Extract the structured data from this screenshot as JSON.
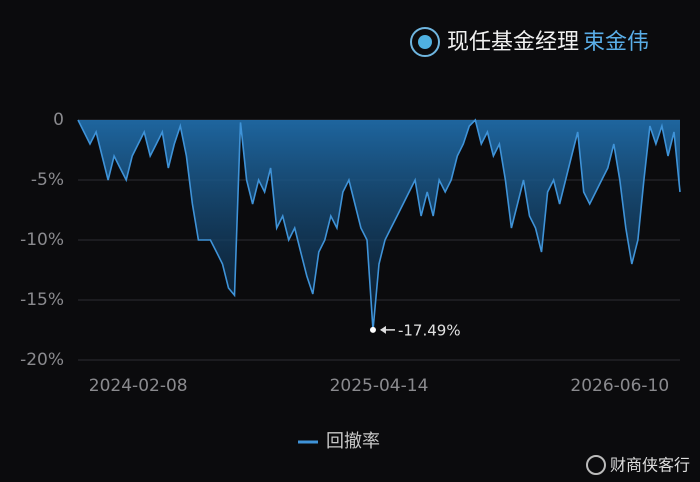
{
  "chart_data": {
    "type": "area",
    "title": "现任基金经理",
    "manager": "束金伟",
    "categories": [
      null,
      null,
      null,
      null,
      null,
      null,
      null,
      null,
      null,
      null,
      "2024-02-08",
      null,
      null,
      null,
      null,
      null,
      null,
      null,
      null,
      null,
      null,
      null,
      null,
      null,
      null,
      null,
      null,
      null,
      null,
      null,
      null,
      null,
      null,
      null,
      null,
      null,
      null,
      null,
      null,
      null,
      null,
      null,
      null,
      null,
      null,
      null,
      null,
      null,
      null,
      null,
      "2025-04-14",
      null,
      null,
      null,
      null,
      null,
      null,
      null,
      null,
      null,
      null,
      null,
      null,
      null,
      null,
      null,
      null,
      null,
      null,
      null,
      null,
      null,
      null,
      null,
      null,
      null,
      null,
      null,
      null,
      null,
      null,
      null,
      null,
      null,
      null,
      null,
      null,
      null,
      null,
      null,
      "2026-06-10",
      null,
      null,
      null,
      null,
      null,
      null,
      null,
      null,
      null,
      null
    ],
    "series": [
      {
        "name": "回撤率",
        "color": "#3f93d8",
        "values": [
          0,
          -1,
          -2,
          -1,
          -3,
          -5,
          -3,
          -4,
          -5,
          -3,
          -2,
          -1,
          -3,
          -2,
          -1,
          -4,
          -2,
          -0.5,
          -3,
          -7,
          -10,
          -10,
          -10,
          -11,
          -12,
          -14,
          -14.6,
          -0.2,
          -5,
          -7,
          -5,
          -6,
          -4,
          -9,
          -8,
          -10,
          -9,
          -11,
          -13,
          -14.5,
          -11,
          -10,
          -8,
          -9,
          -6,
          -5,
          -7,
          -9,
          -10,
          -17.49,
          -12,
          -10,
          -9,
          -8,
          -7,
          -6,
          -5,
          -8,
          -6,
          -8,
          -5,
          -6,
          -5,
          -3,
          -2,
          -0.5,
          0,
          -2,
          -1,
          -3,
          -2,
          -5,
          -9,
          -7,
          -5,
          -8,
          -9,
          -11,
          -6,
          -5,
          -7,
          -5,
          -3,
          -1,
          -6,
          -7,
          -6,
          -5,
          -4,
          -2,
          -5,
          -9,
          -12,
          -10,
          -5,
          -0.5,
          -2,
          -0.5,
          -3,
          -1,
          -6
        ],
        "value_labels": [
          null,
          null,
          null,
          null,
          null,
          null,
          null,
          null,
          null,
          null,
          null,
          null,
          null,
          null,
          null,
          null,
          null,
          null,
          null,
          null,
          null,
          null,
          null,
          null,
          null,
          null,
          null,
          null,
          null,
          null,
          null,
          null,
          null,
          null,
          null,
          null,
          null,
          null,
          null,
          null,
          null,
          null,
          null,
          null,
          null,
          null,
          null,
          null,
          null,
          "-17.49%",
          null,
          null,
          null,
          null,
          null,
          null,
          null,
          null,
          null,
          null,
          null,
          null,
          null,
          null,
          null,
          null,
          null,
          null,
          null,
          null,
          null,
          null,
          null,
          null,
          null,
          null,
          null,
          null,
          null,
          null,
          null,
          null,
          null,
          null,
          null,
          null,
          null,
          null,
          null,
          null,
          null,
          null,
          null,
          null,
          null,
          null,
          null,
          null,
          null,
          null,
          null
        ]
      }
    ],
    "ylim": [
      -20,
      0
    ],
    "yticks": [
      0,
      {
        "value": -5,
        "label": "-5%"
      },
      {
        "value": -10,
        "label": "-10%"
      },
      {
        "value": -15,
        "label": "-15%"
      },
      {
        "value": -20,
        "label": "-20%"
      }
    ],
    "grid": true
  },
  "watermark": "财商侠客行"
}
